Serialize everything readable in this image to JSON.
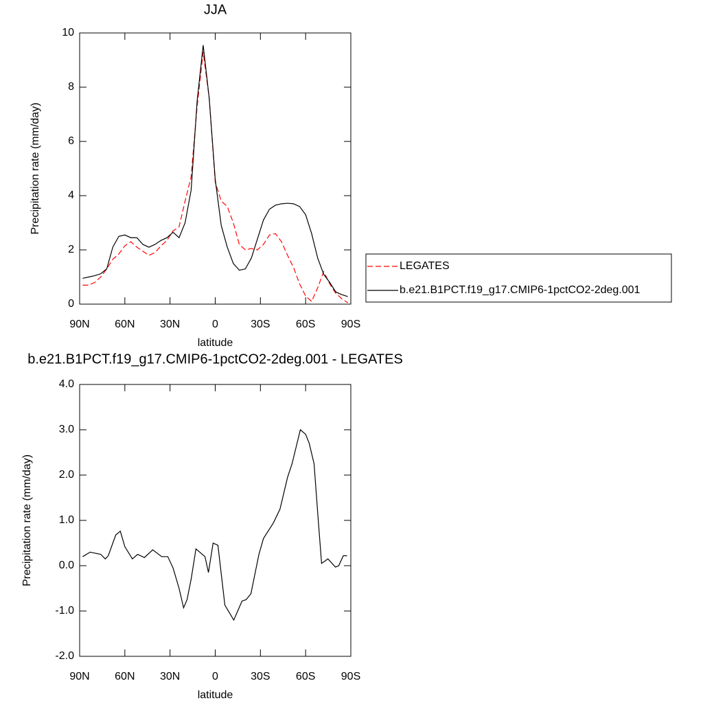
{
  "chart_data": [
    {
      "type": "line",
      "title": "JJA",
      "x_label": "latitude",
      "y_label": "Precipitation rate (mm/day)",
      "x": [
        88,
        84,
        80,
        76,
        72,
        68,
        64,
        60,
        56,
        52,
        48,
        44,
        40,
        36,
        32,
        28,
        24,
        20,
        16,
        12,
        8,
        4,
        0,
        -4,
        -8,
        -12,
        -16,
        -20,
        -24,
        -28,
        -32,
        -36,
        -40,
        -44,
        -48,
        -52,
        -56,
        -60,
        -64,
        -68,
        -72,
        -76,
        -80,
        -84,
        -88
      ],
      "xlim": [
        90,
        -90
      ],
      "xticks": [
        {
          "value": 90,
          "label": "90N"
        },
        {
          "value": 60,
          "label": "60N"
        },
        {
          "value": 30,
          "label": "30N"
        },
        0,
        {
          "value": -30,
          "label": "30S"
        },
        {
          "value": -60,
          "label": "60S"
        },
        {
          "value": -90,
          "label": "90S"
        }
      ],
      "ylim": [
        0,
        10
      ],
      "yticks": [
        0,
        2,
        4,
        6,
        8,
        10
      ],
      "legend": "right",
      "series": [
        {
          "name": "LEGATES",
          "color": "#ff0000",
          "dash": true,
          "values": [
            0.7,
            0.7,
            0.8,
            1.0,
            1.3,
            1.65,
            1.85,
            2.15,
            2.3,
            2.1,
            1.95,
            1.8,
            1.9,
            2.15,
            2.35,
            2.7,
            2.85,
            3.8,
            4.7,
            7.3,
            9.3,
            7.6,
            4.5,
            3.8,
            3.6,
            3.0,
            2.2,
            2.0,
            2.05,
            2.0,
            2.2,
            2.55,
            2.6,
            2.3,
            1.8,
            1.35,
            0.75,
            0.3,
            0.1,
            0.6,
            1.2,
            0.75,
            0.4,
            0.2,
            0.05
          ]
        },
        {
          "name": "b.e21.B1PCT.f19_g17.CMIP6-1pctCO2-2deg.001",
          "color": "#000000",
          "dash": false,
          "values": [
            0.95,
            1.0,
            1.05,
            1.12,
            1.3,
            2.1,
            2.5,
            2.55,
            2.45,
            2.45,
            2.2,
            2.1,
            2.2,
            2.35,
            2.45,
            2.65,
            2.45,
            3.0,
            4.2,
            7.5,
            9.55,
            7.6,
            4.6,
            2.9,
            2.1,
            1.5,
            1.25,
            1.3,
            1.7,
            2.4,
            3.1,
            3.5,
            3.65,
            3.7,
            3.72,
            3.7,
            3.6,
            3.3,
            2.6,
            1.7,
            1.1,
            0.8,
            0.45,
            0.35,
            0.28
          ]
        }
      ]
    },
    {
      "type": "line",
      "title": "b.e21.B1PCT.f19_g17.CMIP6-1pctCO2-2deg.001 - LEGATES",
      "x_label": "latitude",
      "y_label": "Precipitation rate (mm/day)",
      "x": [
        88,
        83,
        76,
        73,
        71,
        66,
        63,
        60,
        55,
        51.5,
        47,
        41.5,
        35.5,
        31.5,
        28,
        24,
        21,
        18.7,
        16,
        12.8,
        6.8,
        4.5,
        1.4,
        -1.8,
        -6.4,
        -12.3,
        -17.8,
        -20.5,
        -23.7,
        -29,
        -32,
        -38.7,
        -43,
        -48,
        -51,
        -56.5,
        -60,
        -62.4,
        -65.6,
        -68.4,
        -70.6,
        -74.8,
        -79.8,
        -82,
        -85,
        -87.5
      ],
      "values": [
        0.2,
        0.3,
        0.25,
        0.15,
        0.22,
        0.68,
        0.76,
        0.42,
        0.15,
        0.25,
        0.18,
        0.35,
        0.2,
        0.2,
        -0.05,
        -0.5,
        -0.93,
        -0.75,
        -0.3,
        0.37,
        0.2,
        -0.15,
        0.5,
        0.45,
        -0.87,
        -1.2,
        -0.78,
        -0.75,
        -0.62,
        0.25,
        0.6,
        0.95,
        1.25,
        1.95,
        2.25,
        3.0,
        2.9,
        2.7,
        2.25,
        1.0,
        0.05,
        0.15,
        -0.03,
        0.0,
        0.22,
        0.22
      ],
      "color": "#000000",
      "xlim": [
        90,
        -90
      ],
      "xticks": [
        {
          "value": 90,
          "label": "90N"
        },
        {
          "value": 60,
          "label": "60N"
        },
        {
          "value": 30,
          "label": "30N"
        },
        0,
        {
          "value": -30,
          "label": "30S"
        },
        {
          "value": -60,
          "label": "60S"
        },
        {
          "value": -90,
          "label": "90S"
        }
      ],
      "ylim": [
        -2,
        4
      ],
      "yticks": [
        {
          "value": -2,
          "label": "-2.0"
        },
        {
          "value": -1,
          "label": "-1.0"
        },
        {
          "value": 0,
          "label": "0.0"
        },
        {
          "value": 1,
          "label": "1.0"
        },
        {
          "value": 2,
          "label": "2.0"
        },
        {
          "value": 3,
          "label": "3.0"
        },
        {
          "value": 4,
          "label": "4.0"
        }
      ]
    }
  ]
}
